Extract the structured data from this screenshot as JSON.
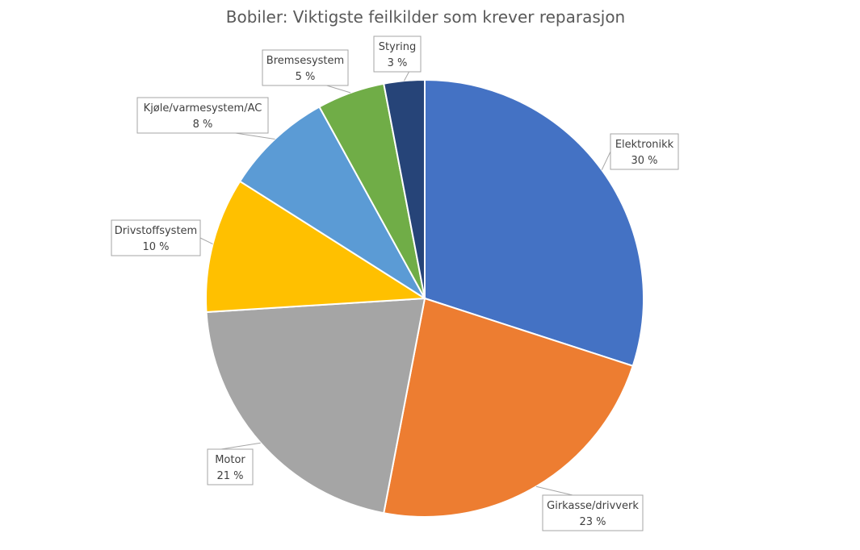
{
  "chart_data": {
    "type": "pie",
    "title": "Bobiler: Viktigste feilkilder som krever reparasjon",
    "legend": "none",
    "slices": [
      {
        "label": "Elektronikk",
        "value": 30,
        "display": "30 %",
        "color": "#4472c4"
      },
      {
        "label": "Girkasse/drivverk",
        "value": 23,
        "display": "23 %",
        "color": "#ed7d31"
      },
      {
        "label": "Motor",
        "value": 21,
        "display": "21 %",
        "color": "#a5a5a5"
      },
      {
        "label": "Drivstoffsystem",
        "value": 10,
        "display": "10 %",
        "color": "#ffc000"
      },
      {
        "label": "Kjøle/varmesystem/AC",
        "value": 8,
        "display": "8 %",
        "color": "#5b9bd5"
      },
      {
        "label": "Bremsesystem",
        "value": 5,
        "display": "5 %",
        "color": "#70ad47"
      },
      {
        "label": "Styring",
        "value": 3,
        "display": "3 %",
        "color": "#264478"
      }
    ]
  }
}
